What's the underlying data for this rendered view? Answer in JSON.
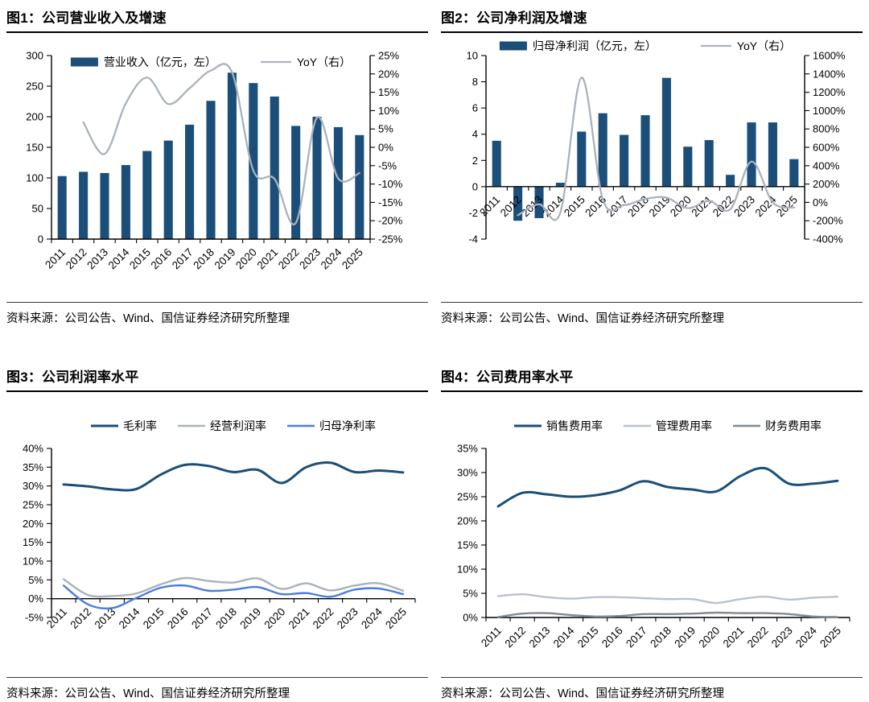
{
  "colors": {
    "navy": "#1B4E79",
    "yoy_gray": "#A9B2BC",
    "blue": "#4A7CDF",
    "light_bluegray": "#B6C3D0",
    "mid_gray": "#7E8B94",
    "axis": "#000000"
  },
  "chart_data": [
    {
      "id": "fig1",
      "type": "bar-line",
      "title": "图1：公司营业收入及增速",
      "source": "资料来源：公司公告、Wind、国信证券经济研究所整理",
      "categories": [
        "2011",
        "2012",
        "2013",
        "2014",
        "2015",
        "2016",
        "2017",
        "2018",
        "2019",
        "2020",
        "2021",
        "2022",
        "2023",
        "2024",
        "2025"
      ],
      "bar": {
        "name": "营业收入（亿元，左）",
        "axis": "left",
        "color_key": "navy",
        "values": [
          103,
          110,
          108,
          121,
          144,
          161,
          187,
          226,
          272,
          255,
          233,
          185,
          200,
          183,
          170
        ]
      },
      "line": {
        "name": "YoY（右）",
        "axis": "right",
        "color_key": "yoy_gray",
        "values": [
          null,
          6.8,
          -1.8,
          12,
          19,
          11.8,
          16.1,
          20.9,
          20.4,
          -6.3,
          -8.6,
          -20.6,
          8.1,
          -8.5,
          -7
        ]
      },
      "left_axis": {
        "min": 0,
        "max": 300,
        "step": 50,
        "suffix": ""
      },
      "right_axis": {
        "min": -25,
        "max": 25,
        "step": 5,
        "suffix": "%"
      },
      "legend_position": "top-inside",
      "grid": false
    },
    {
      "id": "fig2",
      "type": "bar-line",
      "title": "图2：公司净利润及增速",
      "source": "资料来源：公司公告、Wind、国信证券经济研究所整理",
      "categories": [
        "2011",
        "2012",
        "2013",
        "2014",
        "2015",
        "2016",
        "2017",
        "2018",
        "2019",
        "2020",
        "2021",
        "2022",
        "2023",
        "2024",
        "2025"
      ],
      "bar": {
        "name": "归母净利润（亿元，左）",
        "axis": "left",
        "color_key": "navy",
        "values": [
          3.5,
          -2.6,
          -2.4,
          0.3,
          4.2,
          5.6,
          3.95,
          5.45,
          8.3,
          3.05,
          3.55,
          0.9,
          4.9,
          4.9,
          2.1
        ]
      },
      "line": {
        "name": "YoY（右）",
        "axis": "right",
        "color_key": "yoy_gray",
        "values": [
          null,
          -140,
          -20,
          -110,
          1360,
          33,
          -29,
          38,
          52,
          -63,
          16,
          -75,
          444,
          0,
          -57
        ]
      },
      "left_axis": {
        "min": -4,
        "max": 10,
        "step": 2,
        "suffix": ""
      },
      "right_axis": {
        "min": -400,
        "max": 1600,
        "step": 200,
        "suffix": "%"
      },
      "legend_position": "top",
      "grid": false
    },
    {
      "id": "fig3",
      "type": "line",
      "title": "图3：公司利润率水平",
      "source": "资料来源：公司公告、Wind、国信证券经济研究所整理",
      "categories": [
        "2011",
        "2012",
        "2013",
        "2014",
        "2015",
        "2016",
        "2017",
        "2018",
        "2019",
        "2020",
        "2021",
        "2022",
        "2023",
        "2024",
        "2025"
      ],
      "series": [
        {
          "name": "毛利率",
          "color_key": "navy",
          "thick": true,
          "values": [
            30.4,
            29.9,
            29.1,
            29.2,
            33.0,
            35.6,
            35.3,
            33.7,
            34.3,
            30.8,
            35.0,
            36.2,
            33.7,
            34.1,
            33.6
          ]
        },
        {
          "name": "经营利润率",
          "color_key": "yoy_gray",
          "thick": false,
          "values": [
            5.2,
            1.0,
            0.7,
            1.4,
            3.8,
            5.5,
            4.7,
            4.3,
            5.4,
            2.6,
            4.1,
            2.2,
            3.5,
            4.1,
            2.1
          ]
        },
        {
          "name": "归母净利率",
          "color_key": "blue",
          "thick": false,
          "values": [
            3.5,
            -1.5,
            -2.5,
            0.2,
            2.9,
            3.5,
            2.1,
            2.4,
            3.1,
            1.2,
            1.5,
            0.5,
            2.4,
            2.7,
            1.2
          ]
        }
      ],
      "left_axis": {
        "min": -5,
        "max": 40,
        "step": 5,
        "suffix": "%"
      },
      "legend_position": "top",
      "grid": false
    },
    {
      "id": "fig4",
      "type": "line",
      "title": "图4：公司费用率水平",
      "source": "资料来源：公司公告、Wind、国信证券经济研究所整理",
      "categories": [
        "2011",
        "2012",
        "2013",
        "2014",
        "2015",
        "2016",
        "2017",
        "2018",
        "2019",
        "2020",
        "2021",
        "2022",
        "2023",
        "2024",
        "2025"
      ],
      "series": [
        {
          "name": "销售费用率",
          "color_key": "navy",
          "thick": true,
          "values": [
            23.0,
            25.8,
            25.5,
            25.0,
            25.3,
            26.3,
            28.2,
            27.0,
            26.5,
            26.1,
            29.3,
            30.9,
            27.7,
            27.7,
            28.3
          ]
        },
        {
          "name": "管理费用率",
          "color_key": "light_bluegray",
          "thick": false,
          "values": [
            4.4,
            4.8,
            4.2,
            3.9,
            4.2,
            4.2,
            4.0,
            3.8,
            3.8,
            3.0,
            3.8,
            4.3,
            3.7,
            4.1,
            4.3
          ]
        },
        {
          "name": "财务费用率",
          "color_key": "mid_gray",
          "thick": false,
          "values": [
            0.1,
            0.8,
            0.9,
            0.5,
            0.2,
            0.3,
            0.7,
            0.7,
            0.8,
            1.0,
            0.9,
            0.9,
            0.7,
            0.2,
            0.1
          ]
        }
      ],
      "left_axis": {
        "min": 0,
        "max": 35,
        "step": 5,
        "suffix": "%"
      },
      "legend_position": "top",
      "grid": false
    }
  ]
}
